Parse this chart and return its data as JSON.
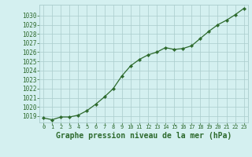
{
  "x": [
    0,
    1,
    2,
    3,
    4,
    5,
    6,
    7,
    8,
    9,
    10,
    11,
    12,
    13,
    14,
    15,
    16,
    17,
    18,
    19,
    20,
    21,
    22,
    23
  ],
  "y": [
    1018.8,
    1018.6,
    1018.9,
    1018.9,
    1019.1,
    1019.6,
    1020.3,
    1021.1,
    1022.0,
    1023.4,
    1024.5,
    1025.2,
    1025.7,
    1026.0,
    1026.5,
    1026.3,
    1026.4,
    1026.7,
    1027.5,
    1028.3,
    1029.0,
    1029.5,
    1030.1,
    1030.8
  ],
  "line_color": "#2d6a2d",
  "marker": "D",
  "marker_size": 2.2,
  "bg_color": "#d4f0f0",
  "grid_color": "#aacccc",
  "tick_color": "#2d6a2d",
  "xlabel": "Graphe pression niveau de la mer (hPa)",
  "xlabel_fontsize": 7.0,
  "ylim_min": 1018.3,
  "ylim_max": 1031.2,
  "yticks": [
    1019,
    1020,
    1021,
    1022,
    1023,
    1024,
    1025,
    1026,
    1027,
    1028,
    1029,
    1030
  ],
  "xticks": [
    0,
    1,
    2,
    3,
    4,
    5,
    6,
    7,
    8,
    9,
    10,
    11,
    12,
    13,
    14,
    15,
    16,
    17,
    18,
    19,
    20,
    21,
    22,
    23
  ],
  "line_width": 0.9,
  "ytick_fontsize": 5.5,
  "xtick_fontsize": 5.0
}
